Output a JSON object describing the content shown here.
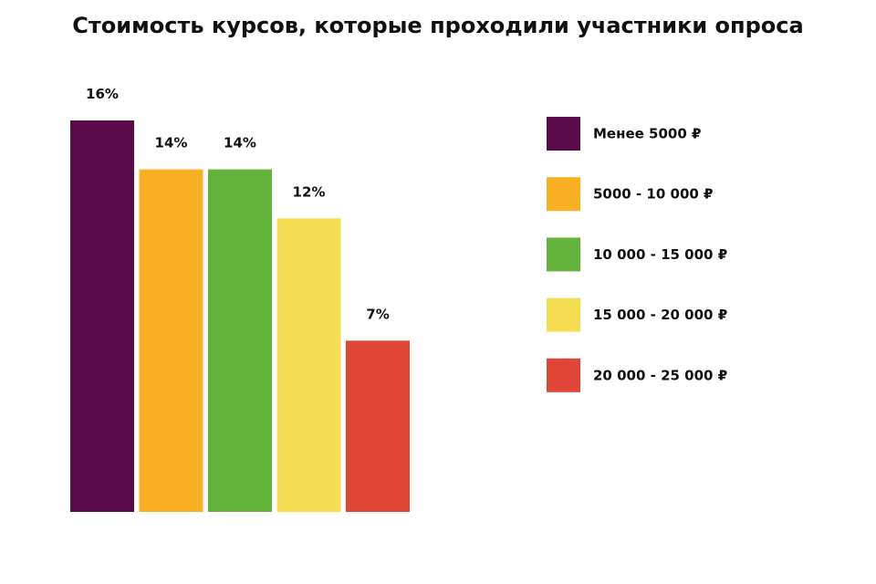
{
  "chart_data": {
    "type": "bar",
    "title": "Стоимость курсов, которые проходили участники опроса",
    "categories": [
      "Менее 5000 ₽",
      "5000 - 10 000 ₽",
      "10 000 - 15 000 ₽",
      "15 000 - 20 000 ₽",
      "20 000 - 25 000 ₽"
    ],
    "values": [
      16,
      14,
      14,
      12,
      7
    ],
    "data_labels": [
      "16%",
      "14%",
      "14%",
      "12%",
      "7%"
    ],
    "colors": [
      "#5a0c4a",
      "#f8b022",
      "#63b33c",
      "#f4dd50",
      "#df4638"
    ],
    "unit": "%",
    "ylim": [
      0,
      16
    ],
    "xlabel": "",
    "ylabel": "",
    "grid": false,
    "legend_position": "right"
  }
}
